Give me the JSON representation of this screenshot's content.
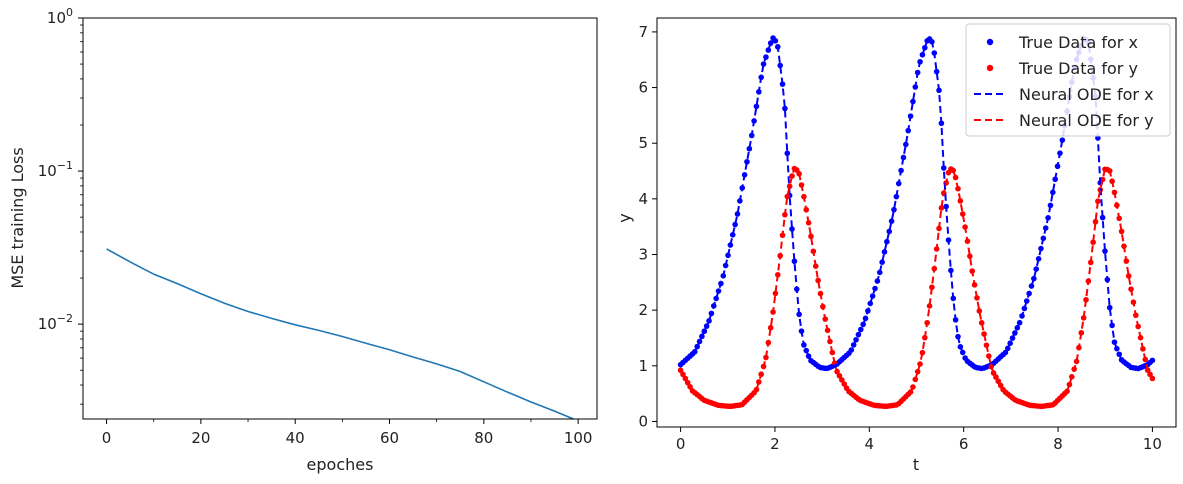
{
  "chart_data": [
    {
      "type": "line",
      "yscale": "log",
      "xlabel": "epoches",
      "ylabel": "MSE training Loss",
      "xlim": [
        -5,
        104
      ],
      "ylim": [
        0.0024,
        1
      ],
      "xticks": [
        0,
        20,
        40,
        60,
        80,
        100
      ],
      "xtick_labels": [
        "0",
        "20",
        "40",
        "60",
        "80",
        "100"
      ],
      "yticks": [
        0.01,
        0.1,
        1
      ],
      "ytick_labels": [
        "10^-2",
        "10^-1",
        "10^0"
      ],
      "grid": false,
      "line_color": "#1f77b4",
      "x": [
        0,
        5,
        10,
        15,
        20,
        25,
        28,
        30,
        35,
        40,
        45,
        50,
        55,
        60,
        65,
        70,
        75,
        80,
        85,
        90,
        95,
        99
      ],
      "y": [
        0.031,
        0.0255,
        0.0212,
        0.0184,
        0.0158,
        0.0137,
        0.0127,
        0.0121,
        0.0109,
        0.0099,
        0.0091,
        0.0083,
        0.0075,
        0.0068,
        0.0061,
        0.0055,
        0.0049,
        0.0042,
        0.0036,
        0.0031,
        0.0027,
        0.0024
      ]
    },
    {
      "type": "line",
      "xlabel": "t",
      "ylabel": "y",
      "xlim": [
        -0.5,
        10.5
      ],
      "ylim": [
        -0.1,
        7.25
      ],
      "xticks": [
        0,
        2,
        4,
        6,
        8,
        10
      ],
      "xtick_labels": [
        "0",
        "2",
        "4",
        "6",
        "8",
        "10"
      ],
      "yticks": [
        0,
        1,
        2,
        3,
        4,
        5,
        6,
        7
      ],
      "ytick_labels": [
        "0",
        "1",
        "2",
        "3",
        "4",
        "5",
        "6",
        "7"
      ],
      "grid": false,
      "legend_position": "top-right",
      "t_range": [
        0,
        10
      ],
      "period": 3.3,
      "n_points": 200,
      "x_profile": [
        [
          0.0,
          1.02
        ],
        [
          0.3,
          1.25
        ],
        [
          0.6,
          1.8
        ],
        [
          0.9,
          2.6
        ],
        [
          1.2,
          3.7
        ],
        [
          1.5,
          5.1
        ],
        [
          1.75,
          6.4
        ],
        [
          1.95,
          6.9
        ],
        [
          2.05,
          6.8
        ],
        [
          2.2,
          5.8
        ],
        [
          2.3,
          4.2
        ],
        [
          2.4,
          3.0
        ],
        [
          2.5,
          2.0
        ],
        [
          2.6,
          1.4
        ],
        [
          2.75,
          1.1
        ],
        [
          2.95,
          0.97
        ],
        [
          3.1,
          0.95
        ],
        [
          3.3,
          1.02
        ]
      ],
      "y_profile": [
        [
          0.0,
          0.92
        ],
        [
          0.25,
          0.55
        ],
        [
          0.5,
          0.38
        ],
        [
          0.8,
          0.29
        ],
        [
          1.05,
          0.27
        ],
        [
          1.3,
          0.3
        ],
        [
          1.6,
          0.55
        ],
        [
          1.8,
          1.1
        ],
        [
          1.95,
          1.9
        ],
        [
          2.1,
          2.9
        ],
        [
          2.25,
          4.0
        ],
        [
          2.4,
          4.55
        ],
        [
          2.5,
          4.5
        ],
        [
          2.6,
          4.1
        ],
        [
          2.75,
          3.4
        ],
        [
          2.9,
          2.6
        ],
        [
          3.05,
          1.9
        ],
        [
          3.2,
          1.3
        ],
        [
          3.3,
          0.92
        ]
      ],
      "series": [
        {
          "name": "True Data for x",
          "style": "dots",
          "color": "#0000ff",
          "source": "x_profile"
        },
        {
          "name": "True Data for y",
          "style": "dots",
          "color": "#ff0000",
          "source": "y_profile"
        },
        {
          "name": "Neural ODE for x",
          "style": "dashed",
          "color": "#0000ff",
          "source": "x_profile"
        },
        {
          "name": "Neural ODE for y",
          "style": "dashed",
          "color": "#ff0000",
          "source": "y_profile"
        }
      ]
    }
  ]
}
